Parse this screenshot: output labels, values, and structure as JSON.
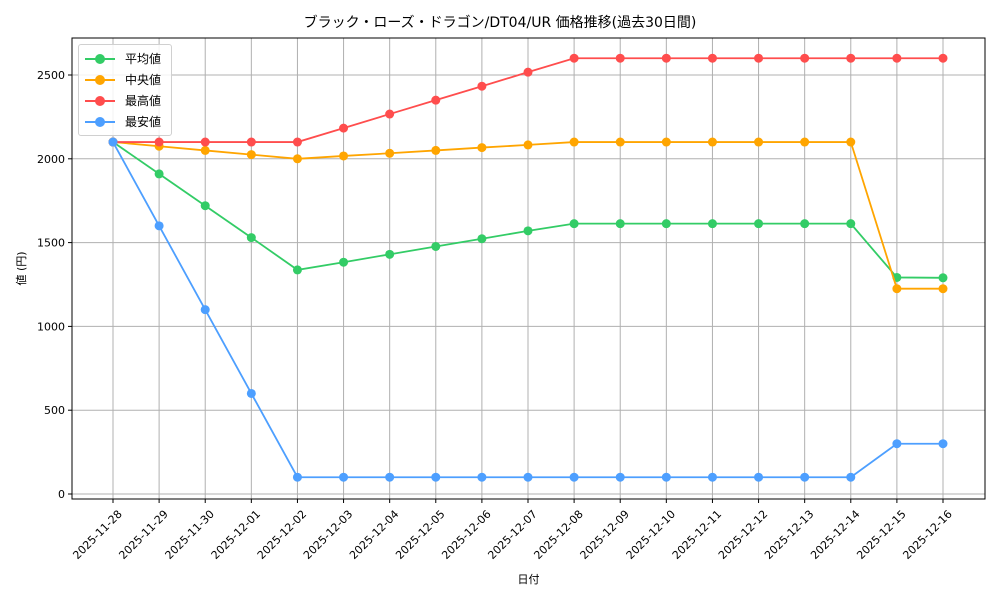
{
  "title": "ブラック・ローズ・ドラゴン/DT04/UR 価格推移(過去30日間)",
  "chart_data": {
    "type": "line",
    "title": "ブラック・ローズ・ドラゴン/DT04/UR 価格推移(過去30日間)",
    "xlabel": "日付",
    "ylabel": "値 (円)",
    "ylim": [
      -30,
      2720
    ],
    "yticks": [
      0,
      500,
      1000,
      1500,
      2000,
      2500
    ],
    "grid": true,
    "legend_position": "upper left",
    "categories": [
      "2025-11-28",
      "2025-11-29",
      "2025-11-30",
      "2025-12-01",
      "2025-12-02",
      "2025-12-03",
      "2025-12-04",
      "2025-12-05",
      "2025-12-06",
      "2025-12-07",
      "2025-12-08",
      "2025-12-09",
      "2025-12-10",
      "2025-12-11",
      "2025-12-12",
      "2025-12-13",
      "2025-12-14",
      "2025-12-15",
      "2025-12-16"
    ],
    "series": [
      {
        "name": "平均値",
        "color": "#33cc66",
        "values": [
          2100,
          1910,
          1720,
          1530,
          1337,
          1383,
          1430,
          1477,
          1523,
          1570,
          1613,
          1613,
          1613,
          1613,
          1613,
          1613,
          1613,
          1292,
          1290
        ]
      },
      {
        "name": "中央値",
        "color": "#ffa500",
        "values": [
          2100,
          2075,
          2050,
          2025,
          2000,
          2017,
          2033,
          2050,
          2067,
          2083,
          2100,
          2100,
          2100,
          2100,
          2100,
          2100,
          2100,
          1225,
          1225
        ]
      },
      {
        "name": "最高値",
        "color": "#ff4d4d",
        "values": [
          2100,
          2100,
          2100,
          2100,
          2100,
          2183,
          2267,
          2350,
          2433,
          2517,
          2600,
          2600,
          2600,
          2600,
          2600,
          2600,
          2600,
          2600,
          2600
        ]
      },
      {
        "name": "最安値",
        "color": "#4d9fff",
        "values": [
          2100,
          1600,
          1100,
          600,
          100,
          100,
          100,
          100,
          100,
          100,
          100,
          100,
          100,
          100,
          100,
          100,
          100,
          300,
          300
        ]
      }
    ]
  }
}
